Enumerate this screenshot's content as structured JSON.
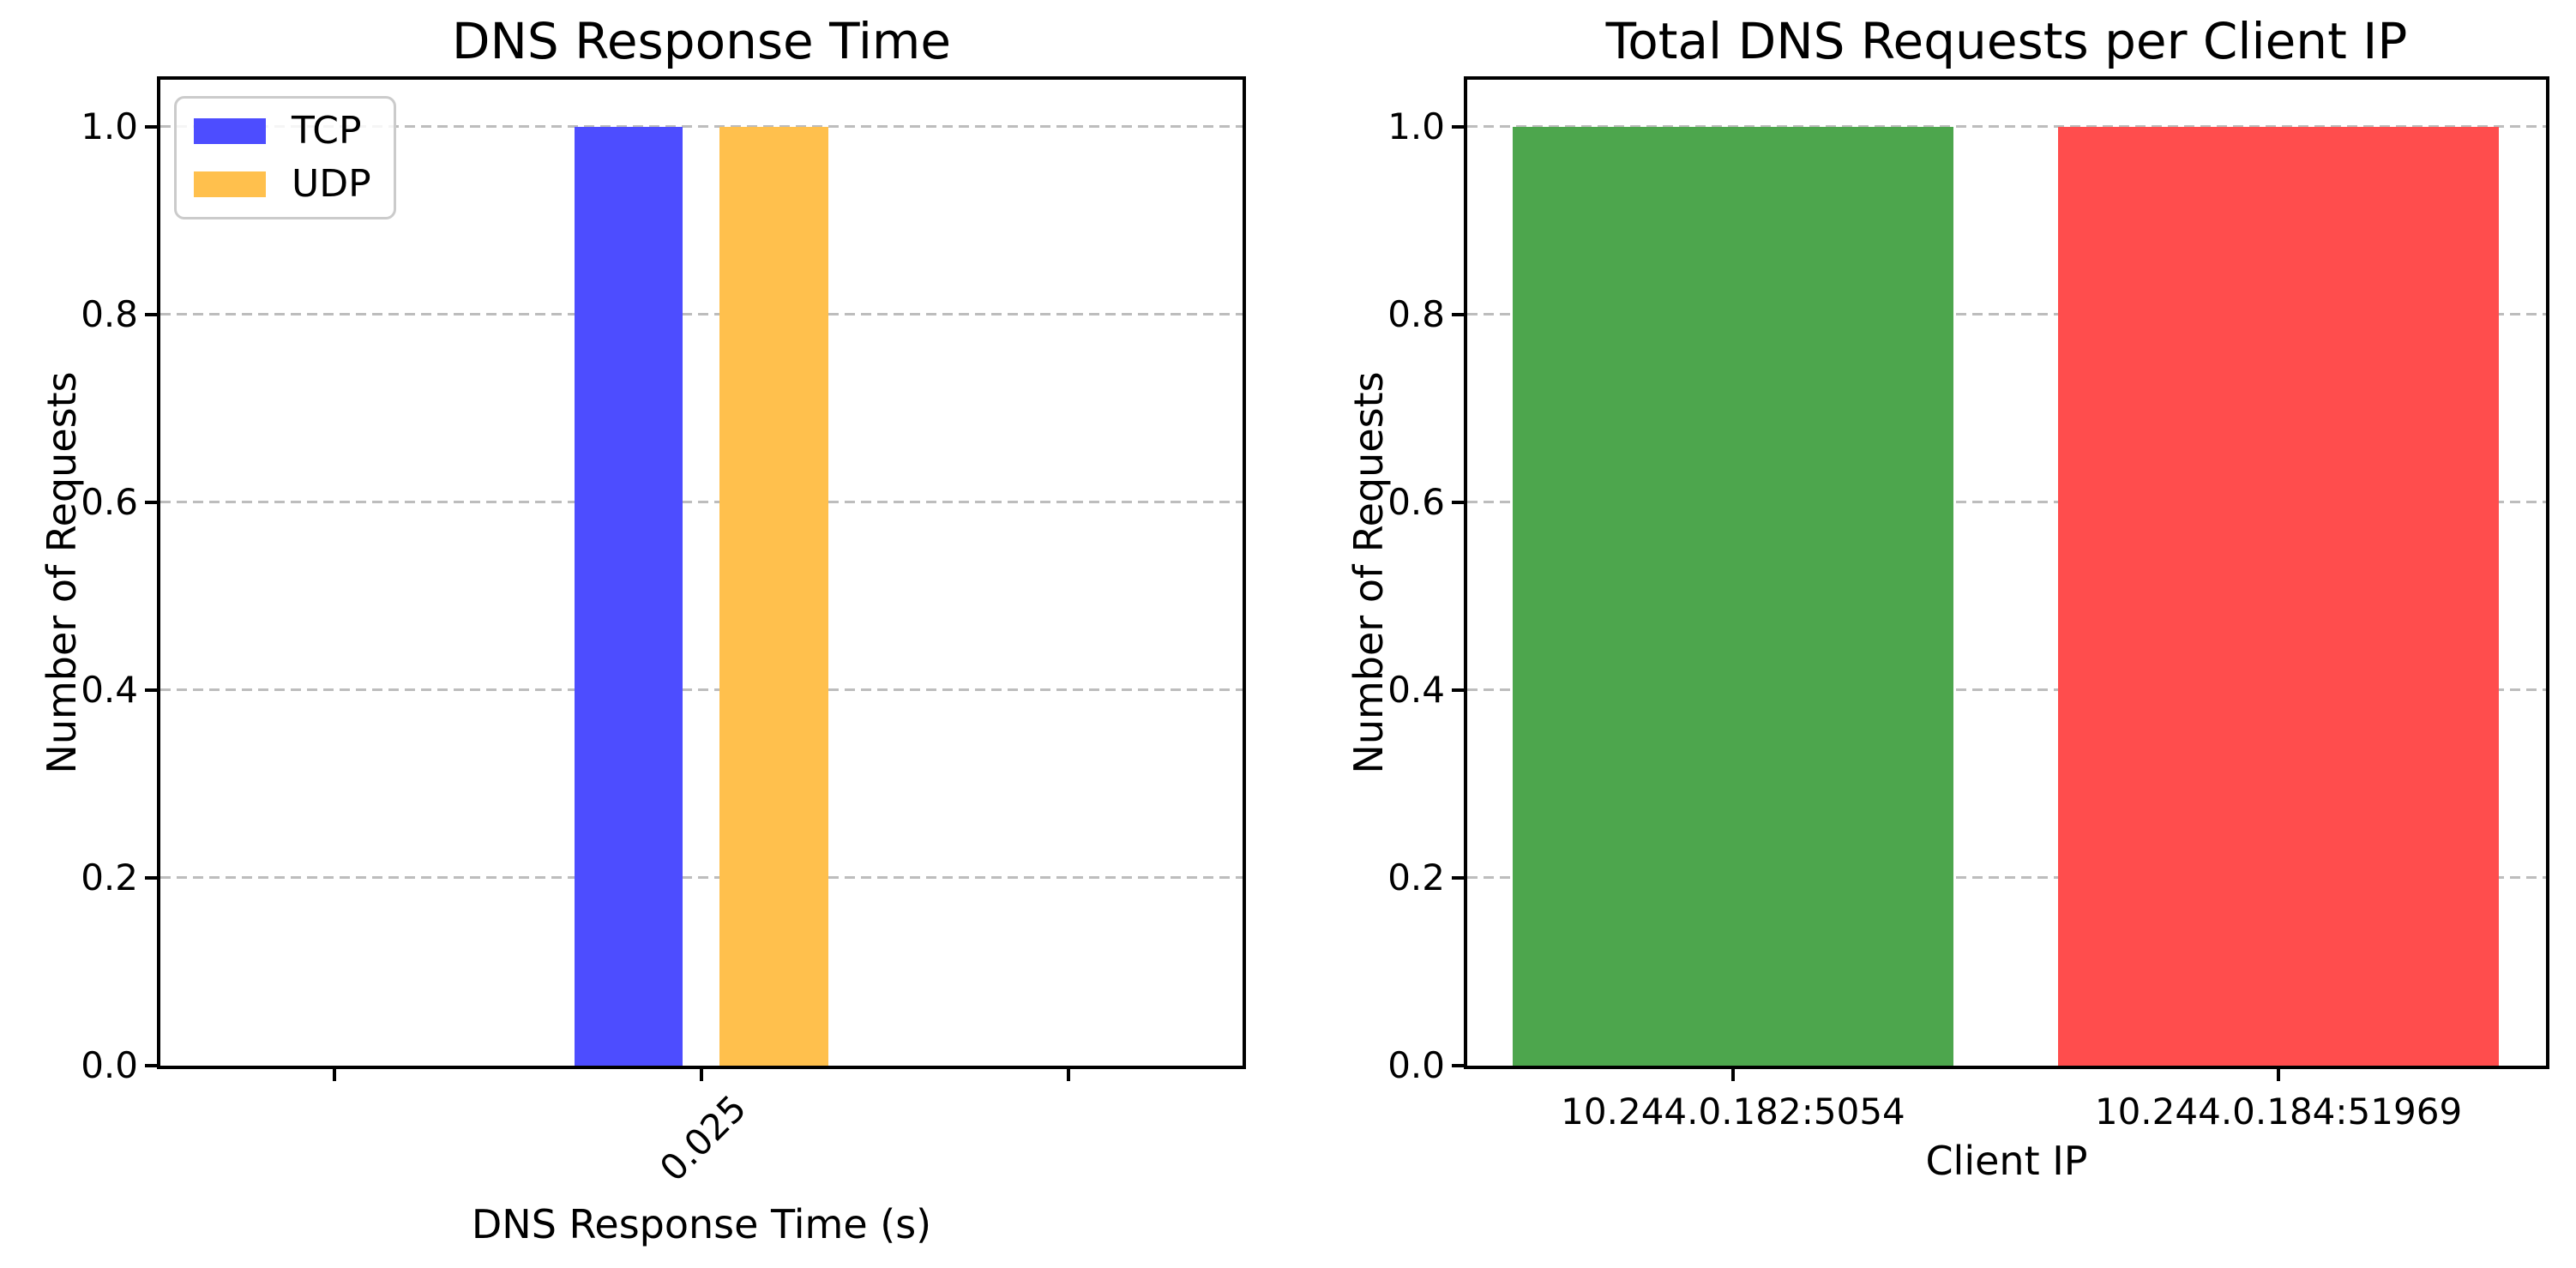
{
  "figure": {
    "background": "#ffffff",
    "text_color": "#000000",
    "grid_color": "#bdbdbd",
    "spine_color": "#000000"
  },
  "chart_data": [
    {
      "type": "bar",
      "title": "DNS Response Time",
      "xlabel": "DNS Response Time (s)",
      "ylabel": "Number of Requests",
      "categories": [
        "0.025"
      ],
      "series": [
        {
          "name": "TCP",
          "color": "#4d4dff",
          "values": [
            1
          ]
        },
        {
          "name": "UDP",
          "color": "#ffc04d",
          "values": [
            1
          ]
        }
      ],
      "ylim": [
        0,
        1.05
      ],
      "yticks": [
        0.0,
        0.2,
        0.4,
        0.6,
        0.8,
        1.0
      ],
      "grid": {
        "axis": "y",
        "style": "dashed"
      },
      "legend": {
        "position": "upper left",
        "entries": [
          {
            "label": "TCP",
            "color": "#4d4dff"
          },
          {
            "label": "UDP",
            "color": "#ffc04d"
          }
        ]
      },
      "xticks": [
        {
          "pos": 0.161,
          "label": ""
        },
        {
          "pos": 0.5,
          "label": "0.025",
          "rotation": 45
        },
        {
          "pos": 0.839,
          "label": ""
        }
      ],
      "bars": [
        {
          "series": "TCP",
          "value": 1,
          "x": 0.383,
          "w": 0.0998,
          "color": "#4d4dff"
        },
        {
          "series": "UDP",
          "value": 1,
          "x": 0.5166,
          "w": 0.1006,
          "color": "#ffc04d"
        }
      ]
    },
    {
      "type": "bar",
      "title": "Total DNS Requests per Client IP",
      "xlabel": "Client IP",
      "ylabel": "Number of Requests",
      "categories": [
        "10.244.0.182:5054",
        "10.244.0.184:51969"
      ],
      "series": [
        {
          "name": "requests",
          "values": [
            1,
            1
          ]
        }
      ],
      "bar_colors": [
        "#4da64d",
        "#ff4d4d"
      ],
      "ylim": [
        0,
        1.05
      ],
      "yticks": [
        0.0,
        0.2,
        0.4,
        0.6,
        0.8,
        1.0
      ],
      "grid": {
        "axis": "y",
        "style": "dashed"
      },
      "legend": null,
      "xticks": [
        {
          "pos": 0.2464,
          "label": "10.244.0.182:5054"
        },
        {
          "pos": 0.752,
          "label": "10.244.0.184:51969"
        }
      ],
      "bars": [
        {
          "series": "10.244.0.182:5054",
          "value": 1,
          "x": 0.0421,
          "w": 0.4086,
          "color": "#4da64d"
        },
        {
          "series": "10.244.0.184:51969",
          "value": 1,
          "x": 0.5477,
          "w": 0.4086,
          "color": "#ff4d4d"
        }
      ]
    }
  ]
}
